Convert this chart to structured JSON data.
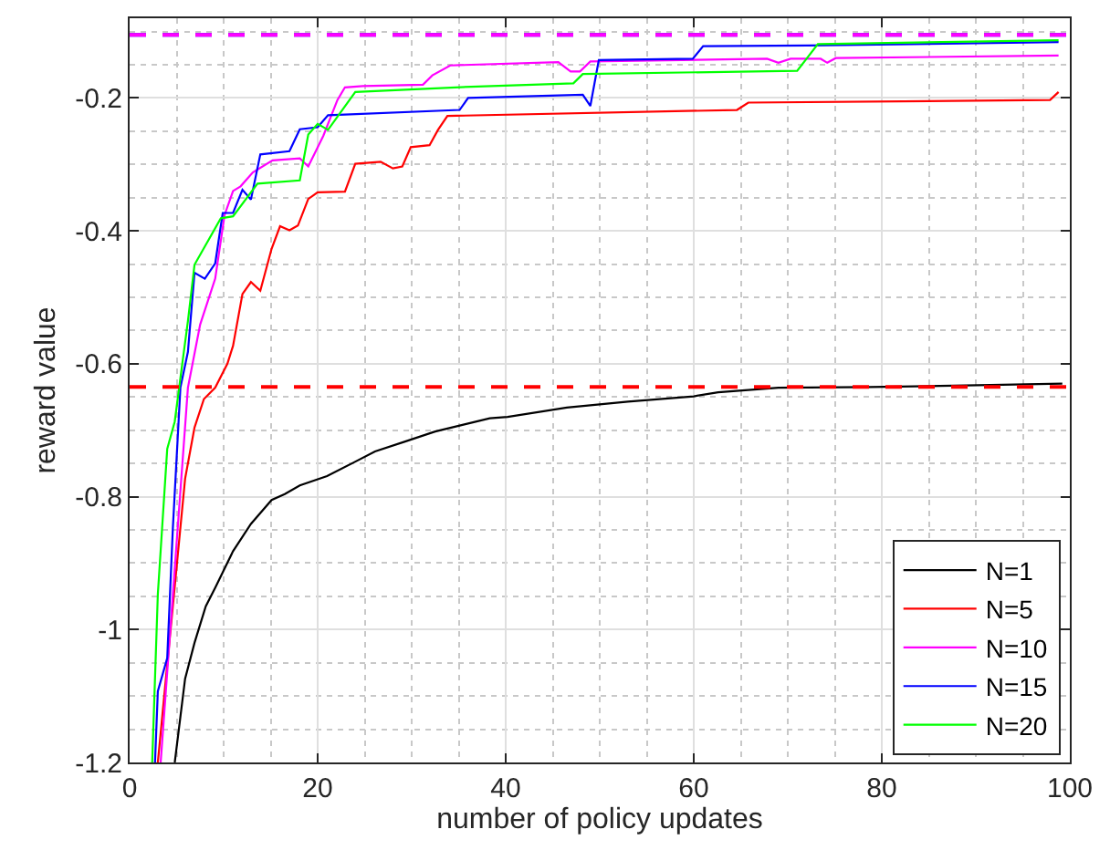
{
  "chart_data": {
    "type": "line",
    "xlabel": "number of policy updates",
    "ylabel": "reward value",
    "xlim": [
      0,
      100
    ],
    "xticks": [
      0,
      20,
      40,
      60,
      80,
      100
    ],
    "ylim": [
      -1.2,
      -0.08
    ],
    "yticks": [
      -1.2,
      -1,
      -0.8,
      -0.6,
      -0.4,
      -0.2
    ],
    "grid": true,
    "legend": "bottom right",
    "line_style": "solid",
    "series": [
      {
        "name": "N=1",
        "color": "#000000",
        "x": [
          4.8,
          5.9,
          6.9,
          8.1,
          9.1,
          11,
          12.9,
          15.1,
          16.5,
          18.1,
          21,
          23.5,
          26.1,
          29.3,
          32.5,
          35.7,
          38.3,
          40.2,
          46.5,
          53,
          60,
          62.6,
          69,
          78.7,
          91.5,
          99.2
        ],
        "values": [
          -1.2,
          -1.074,
          -1.02,
          -0.965,
          -0.937,
          -0.882,
          -0.841,
          -0.805,
          -0.796,
          -0.783,
          -0.769,
          -0.751,
          -0.732,
          -0.717,
          -0.702,
          -0.691,
          -0.682,
          -0.68,
          -0.666,
          -0.657,
          -0.649,
          -0.643,
          -0.636,
          -0.635,
          -0.632,
          -0.63
        ]
      },
      {
        "name": "N=5",
        "color": "#ff0000",
        "x": [
          3,
          5.9,
          6.9,
          7.9,
          9.1,
          10.4,
          11,
          12,
          12.9,
          13.9,
          15.1,
          16,
          17,
          17.9,
          19,
          20,
          22.9,
          24,
          26.7,
          28,
          29,
          29.9,
          31.9,
          32.8,
          33.8,
          64.6,
          65.8,
          97.9,
          98.8
        ],
        "values": [
          -1.2,
          -0.773,
          -0.696,
          -0.653,
          -0.636,
          -0.6,
          -0.573,
          -0.495,
          -0.477,
          -0.49,
          -0.427,
          -0.393,
          -0.399,
          -0.392,
          -0.352,
          -0.342,
          -0.341,
          -0.299,
          -0.296,
          -0.306,
          -0.303,
          -0.274,
          -0.271,
          -0.248,
          -0.227,
          -0.218,
          -0.207,
          -0.203,
          -0.191
        ]
      },
      {
        "name": "N=10",
        "color": "#ff00ff",
        "x": [
          3.3,
          6.2,
          7.5,
          9.1,
          10.1,
          11,
          11.8,
          13.1,
          15.2,
          18.1,
          19,
          20.6,
          22.1,
          22.9,
          24.8,
          31.2,
          32.2,
          34.1,
          45.6,
          46.9,
          47.9,
          49,
          67.8,
          69,
          70.3,
          73.5,
          74.2,
          75.1,
          98.8
        ],
        "values": [
          -1.2,
          -0.636,
          -0.541,
          -0.472,
          -0.376,
          -0.34,
          -0.333,
          -0.312,
          -0.294,
          -0.291,
          -0.303,
          -0.257,
          -0.203,
          -0.184,
          -0.182,
          -0.18,
          -0.166,
          -0.151,
          -0.146,
          -0.16,
          -0.16,
          -0.145,
          -0.141,
          -0.147,
          -0.141,
          -0.141,
          -0.147,
          -0.14,
          -0.136
        ]
      },
      {
        "name": "N=15",
        "color": "#0000ff",
        "x": [
          2.7,
          3,
          4,
          4.6,
          5.4,
          6.2,
          6.9,
          8,
          9.1,
          9.9,
          11,
          12,
          12.9,
          13.9,
          17,
          18.1,
          20,
          21.1,
          35.1,
          36,
          48.2,
          49,
          49.9,
          59.9,
          61,
          72.2,
          98.8
        ],
        "values": [
          -1.2,
          -1.093,
          -1.043,
          -0.847,
          -0.636,
          -0.582,
          -0.463,
          -0.472,
          -0.449,
          -0.373,
          -0.373,
          -0.338,
          -0.353,
          -0.285,
          -0.28,
          -0.247,
          -0.244,
          -0.226,
          -0.218,
          -0.2,
          -0.195,
          -0.212,
          -0.143,
          -0.141,
          -0.122,
          -0.121,
          -0.116
        ]
      },
      {
        "name": "N=20",
        "color": "#00ff00",
        "x": [
          2.4,
          3,
          4,
          4.8,
          5.6,
          6.2,
          6.9,
          9.7,
          11,
          13.6,
          18.1,
          19,
          20,
          21.1,
          24,
          36.3,
          47.2,
          48.2,
          71,
          73.2,
          98.8
        ],
        "values": [
          -1.2,
          -0.947,
          -0.728,
          -0.687,
          -0.6,
          -0.536,
          -0.451,
          -0.381,
          -0.378,
          -0.329,
          -0.324,
          -0.255,
          -0.239,
          -0.248,
          -0.191,
          -0.183,
          -0.178,
          -0.164,
          -0.159,
          -0.119,
          -0.113
        ]
      }
    ],
    "ref_lines": [
      {
        "axis": "y",
        "value": -0.635,
        "color": "#ff0000",
        "line_style": "dashed"
      },
      {
        "axis": "y",
        "value": -0.105,
        "color": "#0000ff",
        "line_style": "dashed"
      },
      {
        "axis": "y",
        "value": -0.105,
        "color": "#ff00ff",
        "line_style": "dashed"
      }
    ]
  }
}
